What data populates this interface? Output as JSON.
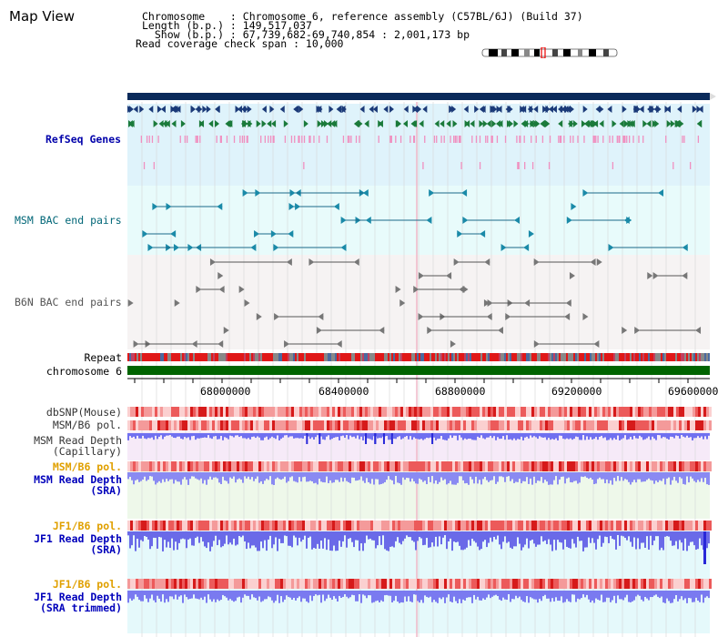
{
  "title": "Map View",
  "info": {
    "line1": "Chromosome    : Chromosome 6, reference assembly (C57BL/6J) (Build 37)",
    "line2": "Length (b.p.) : 149,517,037",
    "line3": "  Show (b.p.) : 67,739,682-69,740,854 : 2,001,173 bp",
    "line4": "Read coverage check span : 10,000"
  },
  "tracks": {
    "refseq": "RefSeq Genes",
    "msm_bac": "MSM BAC end pairs",
    "b6n_bac": "B6N BAC end pairs",
    "repeat": "Repeat",
    "chromosome": "chromosome 6",
    "dbsnp": "dbSNP(Mouse)",
    "msm_b6_pol_1": "MSM/B6 pol.",
    "msm_depth_cap_1": "MSM Read Depth",
    "msm_depth_cap_2": "(Capillary)",
    "msm_b6_pol_2": "MSM/B6 pol.",
    "msm_depth_sra_1": "MSM Read Depth",
    "msm_depth_sra_2": "(SRA)",
    "jf1_b6_pol_1": "JF1/B6 pol.",
    "jf1_depth_sra_1": "JF1 Read Depth",
    "jf1_depth_sra_2": "(SRA)",
    "jf1_b6_pol_2": "JF1/B6 pol.",
    "jf1_depth_trim_1": "JF1 Read Depth",
    "jf1_depth_trim_2": "(SRA trimmed)"
  },
  "axis": {
    "ticks": [
      "68000000",
      "68400000",
      "68800000",
      "69200000",
      "69600000"
    ]
  },
  "colors": {
    "navy": "#0a2a5a",
    "refseq_label": "#0000aa",
    "msm_label": "#006677",
    "orange_label": "#e0a000",
    "blue_label": "#0000bb",
    "chromosome_green": "#006400"
  }
}
